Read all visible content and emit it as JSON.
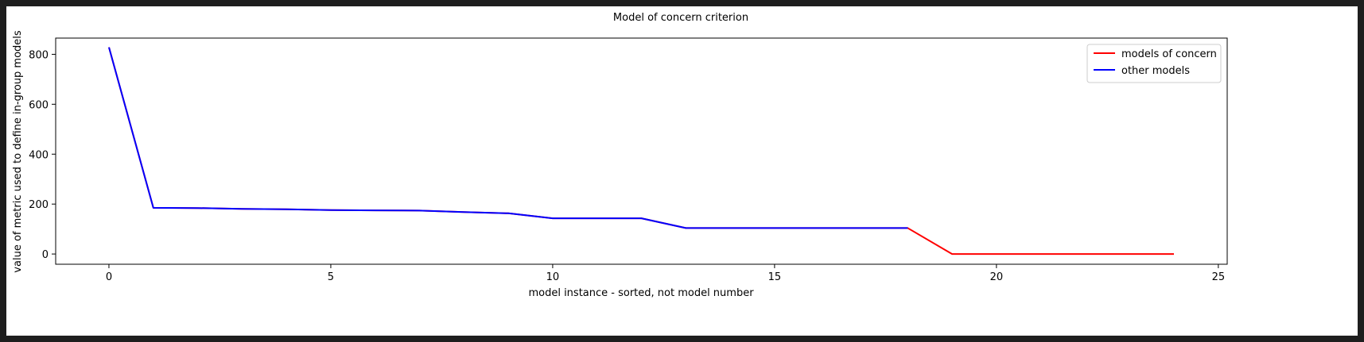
{
  "colors": {
    "background": "#1e1e1e",
    "canvas": "#ffffff",
    "axis": "#000000",
    "legend_border": "#cccccc"
  },
  "chart_data": {
    "type": "line",
    "title": "Model of concern criterion",
    "xlabel": "model instance - sorted, not model number",
    "ylabel": "value of metric used to define in-group models",
    "xlim": [
      -1.2,
      25.2
    ],
    "ylim": [
      -41,
      865
    ],
    "xticks": [
      0,
      5,
      10,
      15,
      20,
      25
    ],
    "yticks": [
      0,
      200,
      400,
      600,
      800
    ],
    "grid": false,
    "legend_placement": "top-right",
    "series": [
      {
        "name": "models of concern",
        "color": "#ff0000",
        "x": [
          0,
          1,
          2,
          3,
          4,
          5,
          6,
          7,
          8,
          9,
          10,
          11,
          12,
          13,
          14,
          15,
          16,
          17,
          18,
          19,
          20,
          21,
          22,
          23,
          24
        ],
        "y": [
          828,
          185,
          184,
          181,
          179,
          176,
          175,
          174,
          168,
          163,
          143,
          143,
          143,
          104,
          104,
          104,
          104,
          104,
          104,
          0,
          0,
          0,
          0,
          0,
          0
        ]
      },
      {
        "name": "other models",
        "color": "#0000ff",
        "x": [
          0,
          1,
          2,
          3,
          4,
          5,
          6,
          7,
          8,
          9,
          10,
          11,
          12,
          13,
          14,
          15,
          16,
          17,
          18
        ],
        "y": [
          828,
          185,
          184,
          181,
          179,
          176,
          175,
          174,
          168,
          163,
          143,
          143,
          143,
          104,
          104,
          104,
          104,
          104,
          104
        ]
      }
    ]
  }
}
